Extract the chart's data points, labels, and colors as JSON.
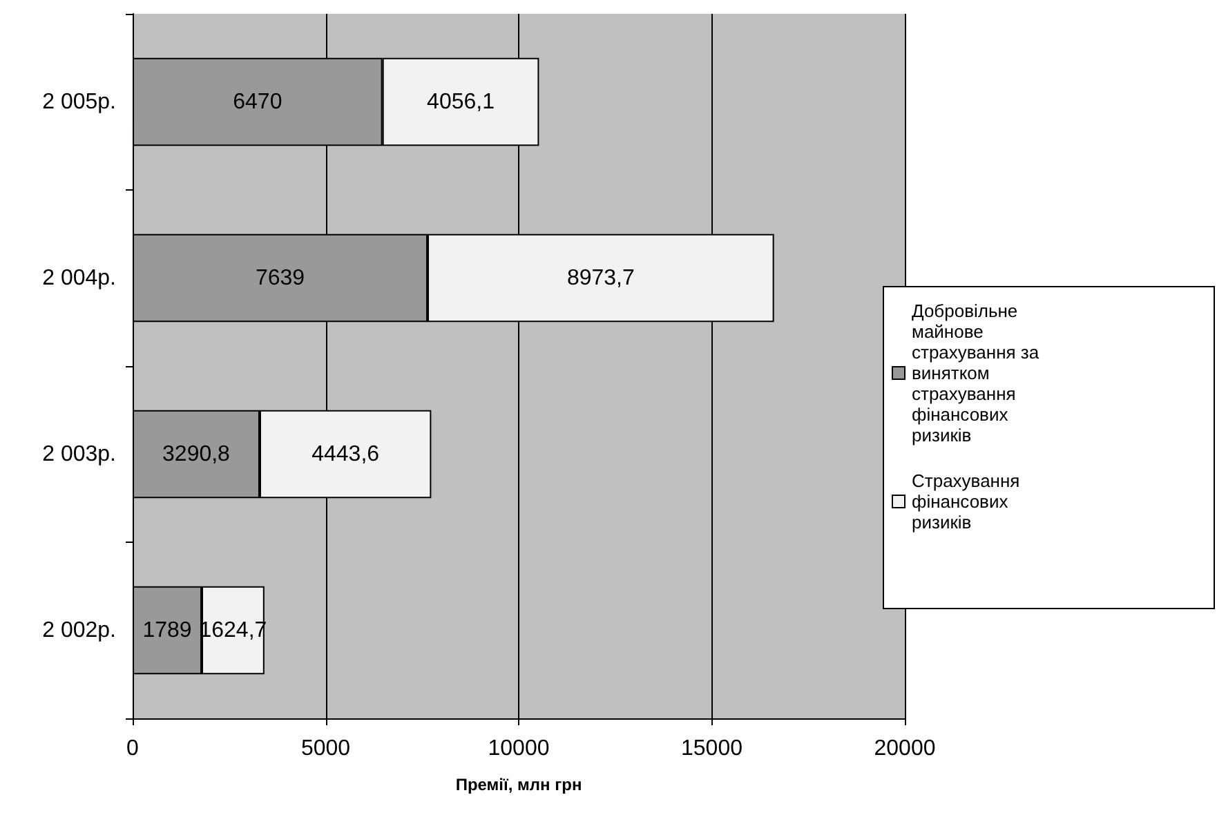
{
  "chart_data": {
    "type": "bar",
    "orientation": "horizontal",
    "stacked": true,
    "xlabel": "Премії, млн грн",
    "categories": [
      "2 005р.",
      "2 004р.",
      "2 003р.",
      "2 002р."
    ],
    "series": [
      {
        "name": "Добровільне майнове страхування за винятком страхування фінансових ризиків",
        "color": "#999999",
        "values": [
          6470,
          7639,
          3290.8,
          1789
        ],
        "value_labels": [
          "6470",
          "7639",
          "3290,8",
          "1789"
        ]
      },
      {
        "name": "Страхування фінансових ризиків",
        "color": "#f2f2f2",
        "values": [
          4056.1,
          8973.7,
          4443.6,
          1624.7
        ],
        "value_labels": [
          "4056,1",
          "8973,7",
          "4443,6",
          "1624,7"
        ]
      }
    ],
    "xlim": [
      0,
      20000
    ],
    "xticks": [
      0,
      5000,
      10000,
      15000,
      20000
    ],
    "grid": "x",
    "legend": "right"
  }
}
